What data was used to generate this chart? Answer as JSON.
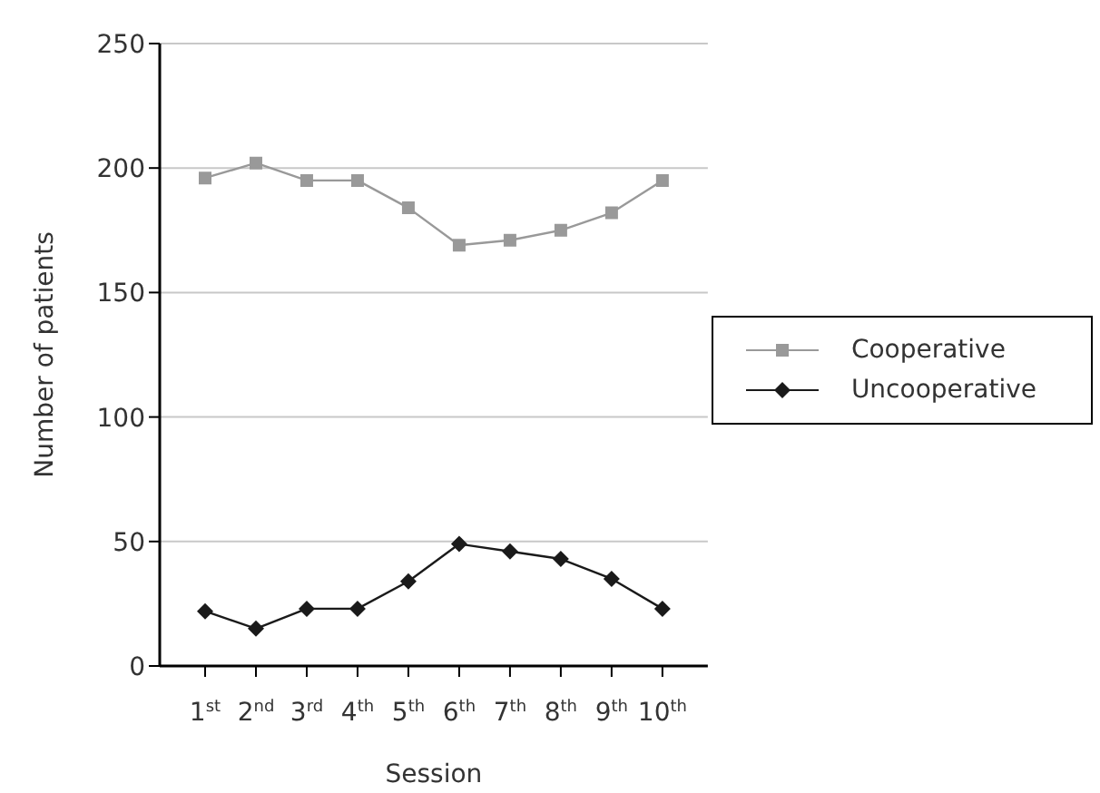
{
  "chart_data": {
    "type": "line",
    "xlabel": "Session",
    "ylabel": "Number of patients",
    "categories": [
      "1$^{st}$",
      "2$^{nd}$",
      "3$^{rd}$",
      "4$^{th}$",
      "5$^{th}$",
      "6$^{th}$",
      "7$^{th}$",
      "8$^{th}$",
      "9$^{th}$",
      "10$^{th}$"
    ],
    "series": [
      {
        "name": "Cooperative",
        "color": "#999999",
        "marker": "square",
        "values": [
          196,
          202,
          195,
          195,
          184,
          169,
          171,
          175,
          182,
          195
        ]
      },
      {
        "name": "Uncooperative",
        "color": "#1a1a1a",
        "marker": "diamond",
        "values": [
          22,
          15,
          23,
          23,
          34,
          49,
          46,
          43,
          35,
          23
        ]
      }
    ],
    "ylim": [
      0,
      250
    ],
    "yticks": [
      0,
      50,
      100,
      150,
      200,
      250
    ],
    "grid": "y",
    "legend": "right",
    "line_style": "solid"
  }
}
